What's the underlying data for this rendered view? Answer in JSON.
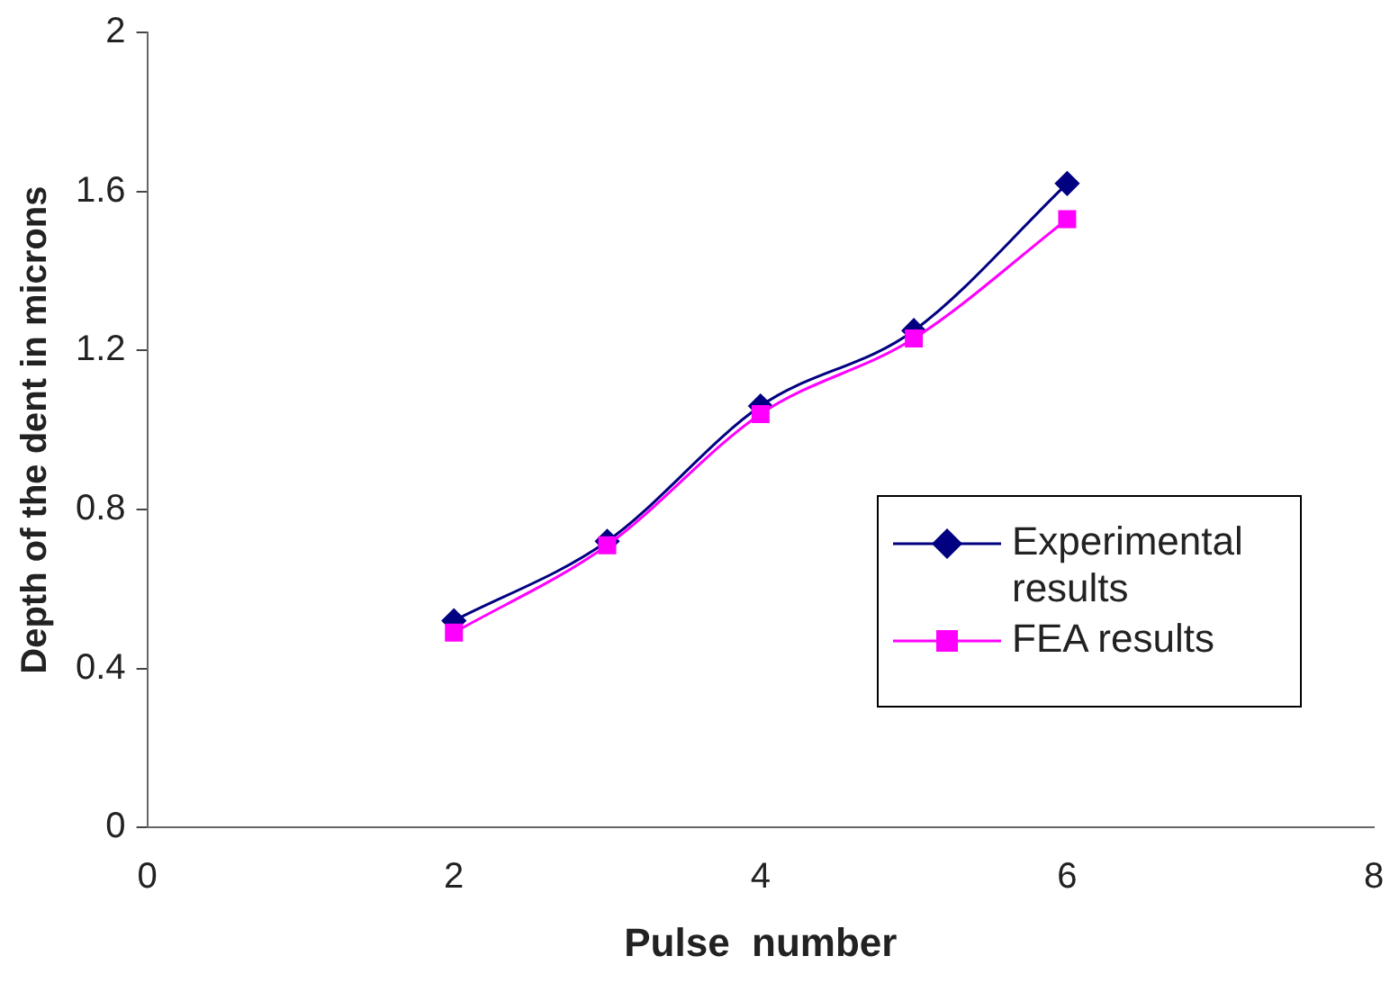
{
  "chart_data": {
    "type": "line",
    "xlabel": "Pulse  number",
    "ylabel": "Depth of the dent in microns",
    "x": [
      2,
      3,
      4,
      5,
      6
    ],
    "series": [
      {
        "name": "Experimental results",
        "color": "#000080",
        "marker": "diamond",
        "values": [
          0.52,
          0.72,
          1.06,
          1.25,
          1.62
        ]
      },
      {
        "name": "FEA results",
        "color": "#ff00ff",
        "marker": "square",
        "values": [
          0.49,
          0.71,
          1.04,
          1.23,
          1.53
        ]
      }
    ],
    "xlim": [
      0,
      8
    ],
    "xticks": [
      0,
      2,
      4,
      6,
      8
    ],
    "ylim": [
      0,
      2
    ],
    "yticks": [
      0,
      0.4,
      0.8,
      1.2,
      1.6,
      2
    ],
    "grid": false,
    "legend": "right",
    "line_style": "solid"
  }
}
